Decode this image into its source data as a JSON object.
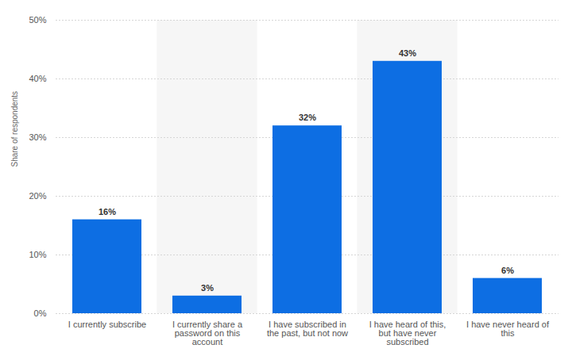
{
  "chart_data": {
    "type": "bar",
    "y_label": "Share of respondents",
    "categories": [
      "I currently subscribe",
      "I currently share a password on this account",
      "I have subscribed in the past, but not now",
      "I have heard of this, but have never subscribed",
      "I have never heard of this"
    ],
    "values": [
      16,
      3,
      32,
      43,
      6
    ],
    "value_labels": [
      "16%",
      "3%",
      "32%",
      "43%",
      "6%"
    ],
    "color": "#0d6ee3",
    "ylim": [
      0,
      50
    ],
    "yticks": [
      {
        "value": 0,
        "label": "0%"
      },
      {
        "value": 10,
        "label": "10%"
      },
      {
        "value": 20,
        "label": "20%"
      },
      {
        "value": 30,
        "label": "30%"
      },
      {
        "value": 40,
        "label": "40%"
      },
      {
        "value": 50,
        "label": "50%"
      }
    ],
    "grid": true,
    "data_labels": true
  }
}
